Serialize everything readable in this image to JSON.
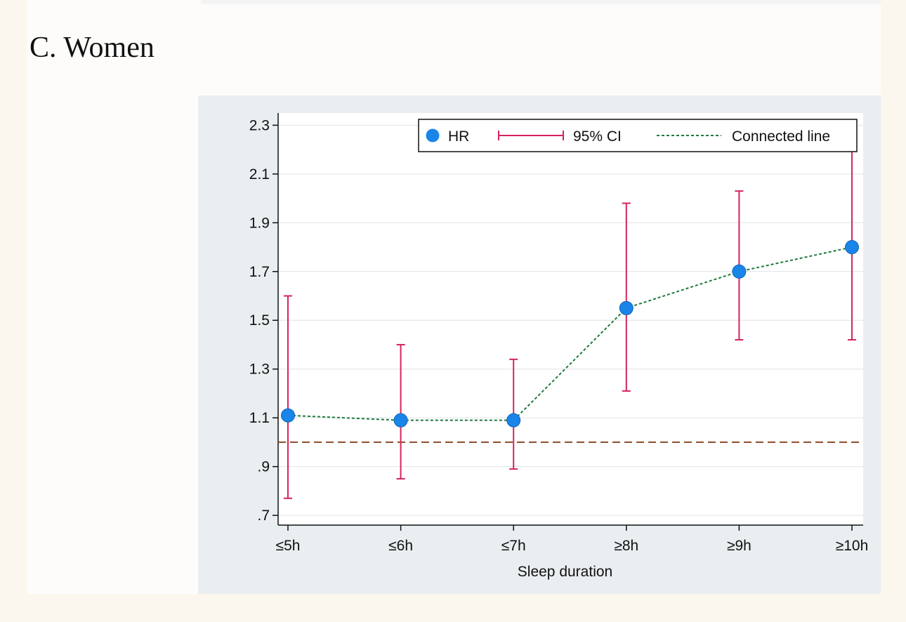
{
  "panel": {
    "title": "C.   Women"
  },
  "chart_data": {
    "type": "scatter",
    "title": "",
    "xlabel": "Sleep duration",
    "ylabel": "",
    "categories": [
      "≤5h",
      "≤6h",
      "≤7h",
      "≥8h",
      "≥9h",
      "≥10h"
    ],
    "ylim": [
      0.66,
      2.35
    ],
    "yticks": [
      0.7,
      0.9,
      1.1,
      1.3,
      1.5,
      1.7,
      1.9,
      2.1,
      2.3
    ],
    "ytick_labels": [
      ".7",
      ".9",
      "1.1",
      "1.3",
      "1.5",
      "1.7",
      "1.9",
      "2.1",
      "2.3"
    ],
    "grid": true,
    "reference_line": 1.0,
    "series": [
      {
        "name": "HR",
        "values": [
          1.11,
          1.09,
          1.09,
          1.55,
          1.7,
          1.8
        ],
        "ci_lower": [
          0.77,
          0.85,
          0.89,
          1.21,
          1.42,
          1.42
        ],
        "ci_upper": [
          1.6,
          1.4,
          1.34,
          1.98,
          2.03,
          2.2
        ]
      }
    ],
    "legend": {
      "placement": "top-right",
      "entries": [
        "HR",
        "95% CI",
        "Connected line"
      ]
    },
    "colors": {
      "hr": "#1a85e8",
      "ci": "#d6245e",
      "connected": "#1d7a3c",
      "reference": "#8b4a28",
      "grid": "#dde4e8",
      "axis": "#111111"
    }
  }
}
